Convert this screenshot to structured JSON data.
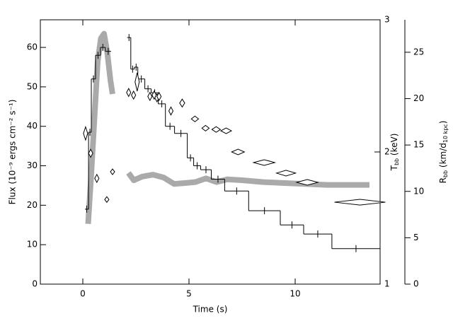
{
  "chart_data": {
    "type": "combo",
    "xlabel": "Time (s)",
    "ylabel": "Flux (10⁻⁹ ergs cm⁻² s⁻¹)",
    "y2label": [
      "T",
      "bb",
      " (keV)"
    ],
    "y3label": [
      "R",
      "bb",
      " (km/d",
      "10 kpc",
      ")"
    ],
    "xlim": [
      -2,
      14
    ],
    "xticks": [
      0,
      5,
      10
    ],
    "ylim": [
      0,
      67
    ],
    "yticks": [
      0,
      10,
      20,
      30,
      40,
      50,
      60
    ],
    "y2lim": [
      1,
      3
    ],
    "y2ticks": [
      1,
      2,
      3
    ],
    "y3lim": [
      0,
      28.5
    ],
    "y3ticks": [
      0,
      5,
      10,
      15,
      20,
      25
    ],
    "series": [
      {
        "type": "band",
        "axis": "y3",
        "color": "#aaaaaa",
        "x": [
          0.25,
          0.4,
          0.55,
          0.7,
          0.85,
          1.0,
          1.15,
          1.3,
          1.4,
          1.8,
          2.15,
          2.4,
          2.8,
          3.3,
          3.8,
          4.3,
          4.8,
          5.3,
          5.8,
          6.3,
          6.8,
          7.5,
          8.5,
          9.5,
          10.5,
          11.5,
          12.5,
          13.5
        ],
        "values": [
          6.5,
          12,
          18,
          24,
          26.5,
          27,
          25,
          22,
          20.5,
          null,
          12.0,
          11.2,
          11.6,
          11.8,
          11.5,
          10.8,
          10.9,
          11.0,
          11.4,
          11.0,
          11.3,
          11.2,
          11.0,
          10.9,
          10.8,
          10.7,
          10.7,
          10.7
        ]
      },
      {
        "type": "step",
        "color": "#000000",
        "bins": [
          0.1,
          0.27,
          0.4,
          0.6,
          0.83,
          1.06,
          1.33,
          2.09,
          2.26,
          2.43,
          2.59,
          2.92,
          3.22,
          3.55,
          3.89,
          4.32,
          4.92,
          5.22,
          5.55,
          6.05,
          6.68,
          7.81,
          9.3,
          10.4,
          11.73,
          14.0
        ],
        "values": [
          19,
          38.5,
          52,
          58,
          60,
          59,
          null,
          62.5,
          54.5,
          55,
          52,
          49.5,
          48.5,
          45.7,
          40,
          38.2,
          32,
          30,
          29,
          26.6,
          23.6,
          18.6,
          15,
          12.7,
          9
        ]
      },
      {
        "type": "diamond",
        "axis": "y2",
        "color": "#000000",
        "x": [
          0.13,
          0.37,
          0.66,
          1.13,
          1.4,
          2.16,
          2.39,
          2.56,
          3.16,
          3.36,
          3.49,
          3.59,
          4.15,
          4.68,
          5.28,
          5.78,
          6.28,
          6.75,
          7.31,
          8.54,
          9.57,
          10.57,
          13.05
        ],
        "xerr": [
          0.1,
          0.05,
          0.05,
          0.05,
          0.05,
          0.1,
          0.1,
          0.08,
          0.1,
          0.1,
          0.1,
          0.1,
          0.1,
          0.12,
          0.17,
          0.17,
          0.2,
          0.25,
          0.3,
          0.5,
          0.45,
          0.5,
          1.2
        ],
        "values": [
          2.14,
          1.99,
          1.8,
          1.64,
          1.85,
          2.45,
          2.43,
          2.53,
          2.42,
          2.43,
          2.41,
          2.42,
          2.31,
          2.37,
          2.25,
          2.18,
          2.17,
          2.16,
          2.0,
          1.92,
          1.84,
          1.77,
          1.62
        ],
        "yerr": [
          0.05,
          0.03,
          0.03,
          0.02,
          0.02,
          0.03,
          0.03,
          0.07,
          0.03,
          0.03,
          0.03,
          0.03,
          0.03,
          0.03,
          0.02,
          0.02,
          0.02,
          0.02,
          0.02,
          0.02,
          0.02,
          0.02,
          0.02
        ]
      }
    ]
  }
}
